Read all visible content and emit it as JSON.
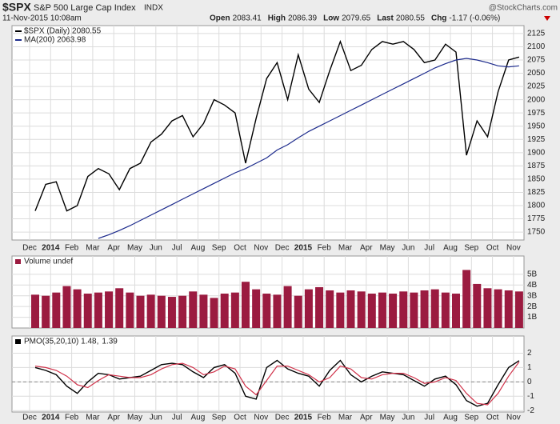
{
  "header": {
    "symbol": "$SPX",
    "name": "S&P 500 Large Cap Index",
    "exchange": "INDX",
    "date": "11-Nov-2015 10:08am",
    "quote": [
      {
        "label": "Open",
        "value": "2083.41"
      },
      {
        "label": "High",
        "value": "2086.39"
      },
      {
        "label": "Low",
        "value": "2079.65"
      },
      {
        "label": "Last",
        "value": "2080.55"
      },
      {
        "label": "Chg",
        "value": "-1.17 (-0.06%)"
      }
    ],
    "source": "@StockCharts.com"
  },
  "chart_data": [
    {
      "type": "line",
      "legend": [
        "$SPX (Daily) 2080.55",
        "MA(200) 2063.98"
      ],
      "categories": [
        "Dec",
        null,
        "2014",
        null,
        "Feb",
        null,
        "Mar",
        null,
        "Apr",
        null,
        "May",
        null,
        "Jun",
        null,
        "Jul",
        null,
        "Aug",
        null,
        "Sep",
        null,
        "Oct",
        null,
        "Nov",
        null,
        "Dec",
        null,
        "2015",
        null,
        "Feb",
        null,
        "Mar",
        null,
        "Apr",
        null,
        "May",
        null,
        "Jun",
        null,
        "Jul",
        null,
        "Aug",
        null,
        "Sep",
        null,
        "Oct",
        null,
        "Nov"
      ],
      "series": [
        {
          "name": "$SPX",
          "color": "#000000",
          "values": [
            1790,
            1840,
            1845,
            1790,
            1800,
            1855,
            1870,
            1860,
            1830,
            1870,
            1880,
            1920,
            1935,
            1960,
            1970,
            1930,
            1955,
            2000,
            1990,
            1975,
            1880,
            1965,
            2040,
            2070,
            2000,
            2085,
            2020,
            1995,
            2055,
            2110,
            2055,
            2065,
            2095,
            2110,
            2105,
            2110,
            2095,
            2070,
            2075,
            2105,
            2090,
            1895,
            1960,
            1930,
            2015,
            2075,
            2080.55
          ]
        },
        {
          "name": "MA(200)",
          "color": "#1c2a8c",
          "values": [
            null,
            null,
            null,
            null,
            null,
            null,
            1738,
            1745,
            1753,
            1762,
            1772,
            1782,
            1792,
            1802,
            1812,
            1822,
            1832,
            1842,
            1852,
            1862,
            1870,
            1880,
            1890,
            1905,
            1915,
            1928,
            1940,
            1950,
            1960,
            1970,
            1980,
            1990,
            2000,
            2010,
            2020,
            2030,
            2040,
            2050,
            2060,
            2068,
            2075,
            2078,
            2075,
            2070,
            2064,
            2062,
            2063.98
          ]
        }
      ],
      "ylim": [
        1735,
        2140
      ],
      "yticks": [
        1750,
        1775,
        1800,
        1825,
        1850,
        1875,
        1900,
        1925,
        1950,
        1975,
        2000,
        2025,
        2050,
        2075,
        2100,
        2125
      ],
      "grid": true
    },
    {
      "type": "bar",
      "legend": [
        "Volume undef"
      ],
      "color": "#9b1b40",
      "values": [
        3.1,
        3.0,
        3.3,
        3.9,
        3.6,
        3.2,
        3.3,
        3.4,
        3.7,
        3.3,
        3.0,
        3.1,
        3.0,
        2.9,
        3.0,
        3.4,
        3.1,
        2.8,
        3.2,
        3.3,
        4.3,
        3.6,
        3.2,
        3.1,
        3.9,
        3.0,
        3.6,
        3.8,
        3.5,
        3.3,
        3.5,
        3.4,
        3.2,
        3.3,
        3.2,
        3.4,
        3.3,
        3.5,
        3.6,
        3.3,
        3.2,
        5.4,
        4.1,
        3.7,
        3.6,
        3.5,
        3.4
      ],
      "ylim": [
        0,
        6.7
      ],
      "yticks": [
        {
          "value": 1,
          "label": "1B"
        },
        {
          "value": 2,
          "label": "2B"
        },
        {
          "value": 3,
          "label": "3B"
        },
        {
          "value": 4,
          "label": "4B"
        },
        {
          "value": 5,
          "label": "5B"
        }
      ],
      "grid": true
    },
    {
      "type": "line",
      "legend": [
        "PMO(35,20,10) 1.48,",
        "1.39"
      ],
      "series": [
        {
          "name": "PMO",
          "color": "#000000",
          "values": [
            1.0,
            0.8,
            0.5,
            -0.3,
            -0.8,
            0.0,
            0.6,
            0.5,
            0.2,
            0.3,
            0.4,
            0.8,
            1.2,
            1.3,
            1.2,
            0.7,
            0.3,
            1.0,
            1.2,
            0.6,
            -1.0,
            -1.2,
            1.0,
            1.5,
            0.9,
            0.6,
            0.4,
            -0.3,
            0.8,
            1.5,
            0.5,
            0.0,
            0.4,
            0.7,
            0.6,
            0.5,
            0.1,
            -0.3,
            0.2,
            0.4,
            -0.2,
            -1.3,
            -1.7,
            -1.5,
            -0.2,
            1.0,
            1.48
          ]
        },
        {
          "name": "Signal",
          "color": "#d0324a",
          "values": [
            1.1,
            1.0,
            0.8,
            0.4,
            -0.2,
            -0.4,
            0.1,
            0.5,
            0.4,
            0.3,
            0.3,
            0.5,
            0.9,
            1.2,
            1.3,
            1.0,
            0.5,
            0.7,
            1.1,
            0.9,
            -0.3,
            -0.9,
            0.1,
            1.1,
            1.1,
            0.8,
            0.5,
            0.0,
            0.3,
            1.1,
            0.9,
            0.3,
            0.2,
            0.5,
            0.6,
            0.6,
            0.3,
            -0.1,
            0.0,
            0.3,
            0.1,
            -0.8,
            -1.5,
            -1.6,
            -0.8,
            0.4,
            1.39
          ]
        }
      ],
      "ylim": [
        -2.1,
        3.2
      ],
      "yticks": [
        -2,
        -1,
        0,
        1,
        2
      ],
      "grid": true
    }
  ]
}
